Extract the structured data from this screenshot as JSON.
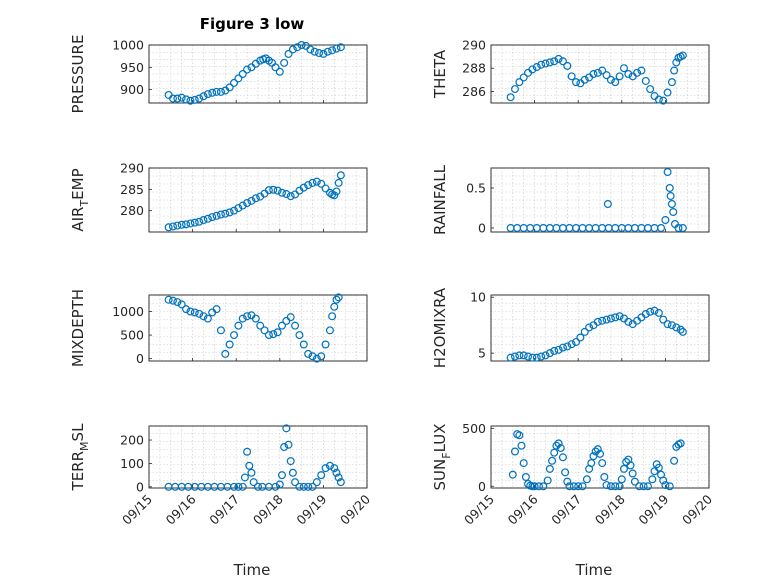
{
  "figure": {
    "title": "Figure 3 low",
    "xlabel": "Time",
    "xtick_labels": [
      "09/15",
      "09/16",
      "09/17",
      "09/18",
      "09/19",
      "09/20"
    ],
    "marker_color": "#0072BD",
    "axis_color": "#262626"
  },
  "chart_data": [
    {
      "type": "scatter",
      "name": "pressure",
      "ylabel": "PRESSURE",
      "ylabel_sub": "",
      "ylim": [
        870,
        1000
      ],
      "yticks": [
        900,
        950,
        1000
      ],
      "ytick_labels": [
        "900",
        "950",
        "1000"
      ],
      "x": [
        0.45,
        0.55,
        0.65,
        0.75,
        0.85,
        0.95,
        1.05,
        1.15,
        1.25,
        1.35,
        1.45,
        1.55,
        1.65,
        1.75,
        1.85,
        1.95,
        2.05,
        2.15,
        2.25,
        2.35,
        2.45,
        2.55,
        2.62,
        2.68,
        2.75,
        2.82,
        2.9,
        3.0,
        3.1,
        3.2,
        3.3,
        3.4,
        3.5,
        3.6,
        3.7,
        3.8,
        3.9,
        4.0,
        4.1,
        4.2,
        4.3,
        4.4
      ],
      "y": [
        888,
        880,
        880,
        882,
        878,
        875,
        877,
        880,
        885,
        890,
        893,
        895,
        895,
        898,
        905,
        915,
        925,
        935,
        945,
        950,
        958,
        965,
        968,
        970,
        965,
        960,
        950,
        940,
        960,
        980,
        990,
        995,
        1000,
        998,
        990,
        985,
        982,
        980,
        985,
        988,
        992,
        995
      ]
    },
    {
      "type": "scatter",
      "name": "theta",
      "ylabel": "THETA",
      "ylabel_sub": "",
      "ylim": [
        285,
        290
      ],
      "yticks": [
        286,
        288,
        290
      ],
      "ytick_labels": [
        "286",
        "288",
        "290"
      ],
      "x": [
        0.45,
        0.55,
        0.65,
        0.75,
        0.85,
        0.95,
        1.05,
        1.15,
        1.25,
        1.35,
        1.45,
        1.55,
        1.65,
        1.75,
        1.85,
        1.95,
        2.05,
        2.15,
        2.25,
        2.35,
        2.45,
        2.55,
        2.65,
        2.75,
        2.85,
        2.95,
        3.05,
        3.15,
        3.25,
        3.35,
        3.45,
        3.55,
        3.65,
        3.75,
        3.85,
        3.95,
        4.05,
        4.15,
        4.2,
        4.25,
        4.3,
        4.35,
        4.4
      ],
      "y": [
        285.5,
        286.2,
        286.8,
        287.2,
        287.6,
        287.9,
        288.1,
        288.3,
        288.4,
        288.5,
        288.6,
        288.8,
        288.6,
        288.2,
        287.3,
        286.8,
        286.7,
        287.0,
        287.2,
        287.5,
        287.6,
        287.8,
        287.4,
        287.0,
        286.8,
        287.3,
        288.0,
        287.5,
        287.3,
        287.6,
        287.8,
        286.9,
        286.2,
        285.6,
        285.3,
        285.2,
        285.9,
        286.8,
        287.8,
        288.5,
        288.9,
        289.0,
        289.1
      ]
    },
    {
      "type": "scatter",
      "name": "air_temp",
      "ylabel": "AIR",
      "ylabel_sub": "T",
      "ylabel_suffix": "EMP",
      "ylim": [
        275,
        290
      ],
      "yticks": [
        280,
        285,
        290
      ],
      "ytick_labels": [
        "280",
        "285",
        "290"
      ],
      "x": [
        0.45,
        0.55,
        0.65,
        0.75,
        0.85,
        0.95,
        1.05,
        1.15,
        1.25,
        1.35,
        1.45,
        1.55,
        1.65,
        1.75,
        1.85,
        1.95,
        2.05,
        2.15,
        2.25,
        2.35,
        2.45,
        2.55,
        2.65,
        2.75,
        2.85,
        2.95,
        3.05,
        3.15,
        3.25,
        3.35,
        3.45,
        3.55,
        3.65,
        3.75,
        3.85,
        3.95,
        4.05,
        4.15,
        4.2,
        4.25,
        4.3,
        4.35,
        4.4
      ],
      "y": [
        276.1,
        276.3,
        276.5,
        276.7,
        276.8,
        277.0,
        277.2,
        277.4,
        277.8,
        278.1,
        278.5,
        278.8,
        279.1,
        279.3,
        279.6,
        280.0,
        280.6,
        281.2,
        281.8,
        282.3,
        282.9,
        283.3,
        284.0,
        284.8,
        284.9,
        284.7,
        284.2,
        283.9,
        283.4,
        283.8,
        284.7,
        285.4,
        286.0,
        286.5,
        286.8,
        286.3,
        285.2,
        284.2,
        283.8,
        283.6,
        284.5,
        286.5,
        288.3
      ]
    },
    {
      "type": "scatter",
      "name": "rainfall",
      "ylabel": "RAINFALL",
      "ylabel_sub": "",
      "ylim": [
        -0.05,
        0.75
      ],
      "yticks": [
        0,
        0.5
      ],
      "ytick_labels": [
        "0",
        "0.5"
      ],
      "x": [
        0.45,
        0.6,
        0.75,
        0.9,
        1.05,
        1.2,
        1.35,
        1.5,
        1.65,
        1.8,
        1.95,
        2.1,
        2.25,
        2.4,
        2.55,
        2.7,
        2.85,
        3.0,
        3.15,
        3.3,
        3.45,
        3.6,
        3.75,
        3.9,
        4.0,
        4.05,
        4.1,
        4.12,
        4.15,
        4.18,
        4.22,
        4.3,
        4.4,
        2.68
      ],
      "y": [
        0,
        0,
        0,
        0,
        0,
        0,
        0,
        0,
        0,
        0,
        0,
        0,
        0,
        0,
        0,
        0,
        0,
        0,
        0,
        0,
        0,
        0,
        0,
        0,
        0.1,
        0.7,
        0.5,
        0.4,
        0.3,
        0.2,
        0.05,
        0,
        0,
        0.3
      ]
    },
    {
      "type": "scatter",
      "name": "mixdepth",
      "ylabel": "MIXDEPTH",
      "ylabel_sub": "",
      "ylim": [
        -50,
        1350
      ],
      "yticks": [
        0,
        500,
        1000
      ],
      "ytick_labels": [
        "0",
        "500",
        "1000"
      ],
      "x": [
        0.45,
        0.55,
        0.65,
        0.75,
        0.85,
        0.95,
        1.05,
        1.15,
        1.25,
        1.35,
        1.45,
        1.55,
        1.65,
        1.75,
        1.85,
        1.95,
        2.05,
        2.15,
        2.25,
        2.35,
        2.45,
        2.55,
        2.65,
        2.75,
        2.85,
        2.95,
        3.05,
        3.15,
        3.25,
        3.35,
        3.45,
        3.55,
        3.65,
        3.75,
        3.85,
        3.95,
        4.05,
        4.15,
        4.2,
        4.25,
        4.3,
        4.35
      ],
      "y": [
        1250,
        1230,
        1200,
        1150,
        1050,
        1000,
        980,
        950,
        900,
        850,
        980,
        1050,
        600,
        100,
        300,
        500,
        700,
        850,
        900,
        920,
        850,
        700,
        600,
        500,
        520,
        560,
        700,
        800,
        880,
        700,
        500,
        300,
        100,
        50,
        0,
        50,
        300,
        600,
        900,
        1100,
        1250,
        1300
      ]
    },
    {
      "type": "scatter",
      "name": "h2omixratio",
      "ylabel": "H2OMIXRA",
      "ylabel_sub": "",
      "ylim": [
        4.3,
        10.2
      ],
      "yticks": [
        5,
        10
      ],
      "ytick_labels": [
        "5",
        "10"
      ],
      "x": [
        0.45,
        0.55,
        0.65,
        0.75,
        0.85,
        0.95,
        1.05,
        1.15,
        1.25,
        1.35,
        1.45,
        1.55,
        1.65,
        1.75,
        1.85,
        1.95,
        2.05,
        2.15,
        2.25,
        2.35,
        2.45,
        2.55,
        2.65,
        2.75,
        2.85,
        2.95,
        3.05,
        3.15,
        3.25,
        3.35,
        3.45,
        3.55,
        3.65,
        3.75,
        3.85,
        3.95,
        4.05,
        4.15,
        4.25,
        4.35,
        4.4
      ],
      "y": [
        4.6,
        4.7,
        4.8,
        4.8,
        4.7,
        4.6,
        4.6,
        4.7,
        4.8,
        5.0,
        5.2,
        5.3,
        5.5,
        5.6,
        5.8,
        6.0,
        6.4,
        6.9,
        7.3,
        7.5,
        7.8,
        7.9,
        8.0,
        8.1,
        8.2,
        8.3,
        8.1,
        7.8,
        7.6,
        7.9,
        8.2,
        8.5,
        8.7,
        8.8,
        8.6,
        8.0,
        7.6,
        7.5,
        7.3,
        7.1,
        6.9
      ]
    },
    {
      "type": "scatter",
      "name": "terr_msl",
      "ylabel": "TERR",
      "ylabel_sub": "M",
      "ylabel_suffix": "SL",
      "ylim": [
        -5,
        260
      ],
      "yticks": [
        0,
        100,
        200
      ],
      "ytick_labels": [
        "0",
        "100",
        "200"
      ],
      "x": [
        0.45,
        0.6,
        0.75,
        0.9,
        1.05,
        1.2,
        1.35,
        1.5,
        1.65,
        1.8,
        1.95,
        2.05,
        2.15,
        2.2,
        2.25,
        2.3,
        2.35,
        2.4,
        2.5,
        2.6,
        2.75,
        2.9,
        3.0,
        3.05,
        3.1,
        3.15,
        3.2,
        3.25,
        3.3,
        3.35,
        3.45,
        3.55,
        3.65,
        3.75,
        3.85,
        3.95,
        4.05,
        4.15,
        4.25,
        4.3,
        4.35,
        4.4
      ],
      "y": [
        0,
        0,
        0,
        0,
        0,
        0,
        0,
        0,
        0,
        0,
        0,
        0,
        0,
        40,
        150,
        90,
        60,
        20,
        0,
        0,
        0,
        0,
        10,
        50,
        170,
        250,
        180,
        110,
        60,
        20,
        0,
        0,
        0,
        0,
        20,
        50,
        80,
        90,
        80,
        60,
        40,
        20
      ]
    },
    {
      "type": "scatter",
      "name": "sun_flux",
      "ylabel": "SUN",
      "ylabel_sub": "F",
      "ylabel_suffix": "LUX",
      "ylim": [
        -15,
        520
      ],
      "yticks": [
        0,
        500
      ],
      "ytick_labels": [
        "0",
        "500"
      ],
      "x": [
        0.5,
        0.55,
        0.6,
        0.65,
        0.7,
        0.75,
        0.8,
        0.85,
        0.9,
        0.95,
        1.0,
        1.1,
        1.2,
        1.3,
        1.35,
        1.4,
        1.45,
        1.5,
        1.55,
        1.6,
        1.65,
        1.7,
        1.75,
        1.8,
        1.9,
        2.0,
        2.1,
        2.2,
        2.25,
        2.3,
        2.35,
        2.4,
        2.45,
        2.5,
        2.55,
        2.6,
        2.65,
        2.75,
        2.85,
        2.95,
        3.0,
        3.05,
        3.1,
        3.15,
        3.2,
        3.25,
        3.3,
        3.4,
        3.5,
        3.6,
        3.7,
        3.75,
        3.8,
        3.85,
        3.9,
        3.95,
        4.0,
        4.1,
        4.2,
        4.25,
        4.3,
        4.35
      ],
      "y": [
        100,
        300,
        450,
        440,
        350,
        200,
        80,
        20,
        5,
        0,
        0,
        0,
        0,
        50,
        150,
        220,
        290,
        350,
        370,
        330,
        250,
        120,
        40,
        0,
        0,
        0,
        0,
        60,
        150,
        200,
        260,
        300,
        320,
        280,
        200,
        80,
        10,
        0,
        0,
        0,
        60,
        150,
        210,
        230,
        180,
        110,
        40,
        0,
        0,
        0,
        60,
        130,
        190,
        160,
        100,
        50,
        10,
        0,
        220,
        340,
        360,
        370
      ]
    }
  ]
}
